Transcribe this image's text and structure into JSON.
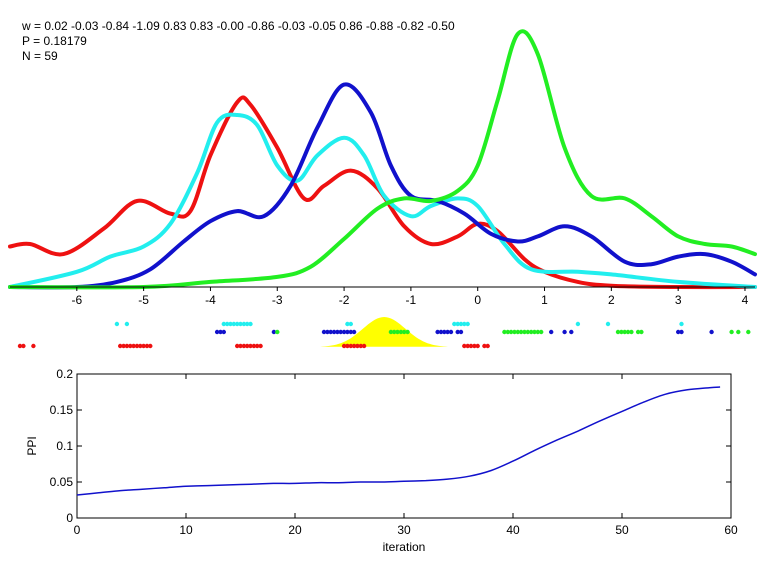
{
  "header": {
    "w_label": "w = 0.02  -0.03  -0.84  -1.09  0.83  0.83  -0.00  -0.86  -0.03  -0.05  0.86  -0.88  -0.82  -0.50",
    "p_label": "P = 0.18179",
    "n_label": "N = 59"
  },
  "chart_data": [
    {
      "type": "line",
      "name": "density-curves",
      "xlim": [
        -7.0,
        4.15
      ],
      "ylim": [
        0,
        1
      ],
      "x_ticks": [
        -6,
        -5,
        -4,
        -3,
        -2,
        -1,
        0,
        1,
        2,
        3,
        4
      ],
      "x_tick_labels": [
        "-6",
        "-5",
        "-4",
        "-3",
        "-2",
        "-1",
        "0",
        "1",
        "2",
        "3",
        "4"
      ],
      "colors": {
        "red": "#ee1111",
        "cyan": "#22eeee",
        "blue": "#1111cc",
        "green": "#22ee22",
        "yellow": "#ffff00"
      },
      "series": [
        {
          "color": "red",
          "points": [
            [
              -7.0,
              0.16
            ],
            [
              -6.7,
              0.17
            ],
            [
              -6.2,
              0.13
            ],
            [
              -5.6,
              0.23
            ],
            [
              -5.1,
              0.34
            ],
            [
              -4.6,
              0.29
            ],
            [
              -4.3,
              0.3
            ],
            [
              -4.0,
              0.52
            ],
            [
              -3.6,
              0.73
            ],
            [
              -3.4,
              0.72
            ],
            [
              -3.0,
              0.55
            ],
            [
              -2.6,
              0.35
            ],
            [
              -2.3,
              0.4
            ],
            [
              -1.9,
              0.46
            ],
            [
              -1.5,
              0.39
            ],
            [
              -1.1,
              0.24
            ],
            [
              -0.7,
              0.17
            ],
            [
              -0.3,
              0.2
            ],
            [
              0.0,
              0.25
            ],
            [
              0.3,
              0.22
            ],
            [
              0.7,
              0.11
            ],
            [
              1.0,
              0.06
            ],
            [
              1.5,
              0.02
            ],
            [
              2.0,
              0.005
            ],
            [
              3.0,
              0.0
            ],
            [
              4.15,
              0.0
            ]
          ]
        },
        {
          "color": "cyan",
          "points": [
            [
              -7.0,
              0.0
            ],
            [
              -6.0,
              0.06
            ],
            [
              -5.5,
              0.12
            ],
            [
              -5.0,
              0.16
            ],
            [
              -4.6,
              0.25
            ],
            [
              -4.2,
              0.45
            ],
            [
              -3.9,
              0.65
            ],
            [
              -3.6,
              0.68
            ],
            [
              -3.3,
              0.64
            ],
            [
              -3.0,
              0.48
            ],
            [
              -2.7,
              0.42
            ],
            [
              -2.4,
              0.52
            ],
            [
              -2.0,
              0.59
            ],
            [
              -1.7,
              0.52
            ],
            [
              -1.4,
              0.36
            ],
            [
              -1.0,
              0.28
            ],
            [
              -0.7,
              0.32
            ],
            [
              -0.3,
              0.35
            ],
            [
              0.0,
              0.32
            ],
            [
              0.4,
              0.17
            ],
            [
              0.8,
              0.07
            ],
            [
              1.5,
              0.06
            ],
            [
              2.0,
              0.05
            ],
            [
              3.0,
              0.02
            ],
            [
              4.15,
              0.0
            ]
          ]
        },
        {
          "color": "blue",
          "points": [
            [
              -7.0,
              0.0
            ],
            [
              -6.0,
              0.0
            ],
            [
              -5.4,
              0.02
            ],
            [
              -4.9,
              0.07
            ],
            [
              -4.4,
              0.18
            ],
            [
              -4.0,
              0.26
            ],
            [
              -3.6,
              0.3
            ],
            [
              -3.2,
              0.28
            ],
            [
              -2.8,
              0.4
            ],
            [
              -2.4,
              0.63
            ],
            [
              -2.0,
              0.8
            ],
            [
              -1.6,
              0.69
            ],
            [
              -1.3,
              0.48
            ],
            [
              -1.0,
              0.36
            ],
            [
              -0.6,
              0.34
            ],
            [
              -0.2,
              0.29
            ],
            [
              0.2,
              0.21
            ],
            [
              0.6,
              0.18
            ],
            [
              0.9,
              0.2
            ],
            [
              1.3,
              0.24
            ],
            [
              1.7,
              0.2
            ],
            [
              2.2,
              0.1
            ],
            [
              2.6,
              0.09
            ],
            [
              3.0,
              0.12
            ],
            [
              3.4,
              0.13
            ],
            [
              3.8,
              0.1
            ],
            [
              4.15,
              0.05
            ]
          ]
        },
        {
          "color": "green",
          "points": [
            [
              -7.0,
              0.0
            ],
            [
              -5.0,
              0.0
            ],
            [
              -4.0,
              0.02
            ],
            [
              -3.0,
              0.04
            ],
            [
              -2.5,
              0.08
            ],
            [
              -2.0,
              0.19
            ],
            [
              -1.5,
              0.31
            ],
            [
              -1.1,
              0.35
            ],
            [
              -0.7,
              0.34
            ],
            [
              -0.3,
              0.38
            ],
            [
              0.0,
              0.48
            ],
            [
              0.3,
              0.74
            ],
            [
              0.6,
              1.0
            ],
            [
              0.9,
              0.92
            ],
            [
              1.3,
              0.55
            ],
            [
              1.7,
              0.36
            ],
            [
              2.2,
              0.35
            ],
            [
              2.6,
              0.28
            ],
            [
              3.0,
              0.2
            ],
            [
              3.4,
              0.17
            ],
            [
              3.8,
              0.16
            ],
            [
              4.15,
              0.13
            ]
          ]
        }
      ]
    },
    {
      "type": "scatter",
      "name": "sample-points",
      "xlim": [
        -7.0,
        4.15
      ],
      "series": [
        {
          "color": "cyan",
          "row": 0,
          "x": [
            -5.4,
            -5.25,
            -3.8,
            -3.75,
            -3.7,
            -3.65,
            -3.6,
            -3.55,
            -3.5,
            -3.45,
            -3.4,
            -1.95,
            -1.9,
            -0.35,
            -0.3,
            -0.25,
            -0.2,
            -0.15,
            1.5,
            1.95,
            3.05
          ]
        },
        {
          "color": "blue",
          "row": 1,
          "x": [
            -3.9,
            -3.85,
            -3.8,
            -3.05,
            -2.3,
            -2.25,
            -2.2,
            -2.15,
            -2.1,
            -2.05,
            -2.0,
            -1.95,
            -1.9,
            -1.85,
            -0.6,
            -0.55,
            -0.5,
            -0.45,
            -0.4,
            -0.3,
            -0.25,
            1.1,
            1.3,
            1.4,
            3.0,
            3.05,
            3.5
          ]
        },
        {
          "color": "green",
          "row": 1,
          "x": [
            -3.0,
            -1.3,
            -1.25,
            -1.2,
            -1.15,
            -1.1,
            -1.05,
            0.4,
            0.45,
            0.5,
            0.55,
            0.6,
            0.65,
            0.7,
            0.75,
            0.8,
            0.85,
            0.9,
            0.95,
            2.1,
            2.15,
            2.2,
            2.25,
            2.3,
            2.4,
            2.45,
            3.8,
            3.9,
            4.05
          ]
        },
        {
          "color": "red",
          "row": 2,
          "x": [
            -6.85,
            -6.8,
            -6.65,
            -5.35,
            -5.3,
            -5.25,
            -5.2,
            -5.15,
            -5.1,
            -5.05,
            -5.0,
            -4.95,
            -4.9,
            -3.6,
            -3.55,
            -3.5,
            -3.45,
            -3.4,
            -3.35,
            -3.3,
            -3.25,
            -2.0,
            -1.95,
            -1.9,
            -1.85,
            -1.8,
            -1.75,
            -1.7,
            -0.2,
            -0.15,
            -0.1,
            -0.05,
            0.0,
            0.1,
            0.15
          ]
        }
      ],
      "highlight": {
        "color": "yellow",
        "center": -1.4,
        "width": 0.32,
        "height": 1.0
      }
    },
    {
      "type": "line",
      "name": "ppi-over-iteration",
      "xlabel": "iteration",
      "ylabel": "PPI",
      "xlim": [
        0,
        60
      ],
      "ylim": [
        0,
        0.2
      ],
      "x_ticks": [
        0,
        10,
        20,
        30,
        40,
        50,
        60
      ],
      "x_tick_labels": [
        "0",
        "10",
        "20",
        "30",
        "40",
        "50",
        "60"
      ],
      "y_ticks": [
        0,
        0.05,
        0.1,
        0.15,
        0.2
      ],
      "y_tick_labels": [
        "0",
        "0.05",
        "0.1",
        "0.15",
        "0.2"
      ],
      "series": [
        {
          "color": "blue",
          "x": [
            0,
            2,
            4,
            6,
            8,
            10,
            12,
            14,
            16,
            18,
            20,
            22,
            24,
            26,
            28,
            30,
            32,
            34,
            36,
            38,
            40,
            42,
            44,
            46,
            48,
            50,
            52,
            54,
            56,
            58,
            59
          ],
          "values": [
            0.032,
            0.035,
            0.038,
            0.04,
            0.042,
            0.044,
            0.045,
            0.046,
            0.047,
            0.048,
            0.048,
            0.049,
            0.049,
            0.05,
            0.05,
            0.051,
            0.052,
            0.054,
            0.058,
            0.066,
            0.079,
            0.094,
            0.108,
            0.121,
            0.135,
            0.148,
            0.161,
            0.172,
            0.178,
            0.181,
            0.182
          ]
        }
      ]
    }
  ]
}
